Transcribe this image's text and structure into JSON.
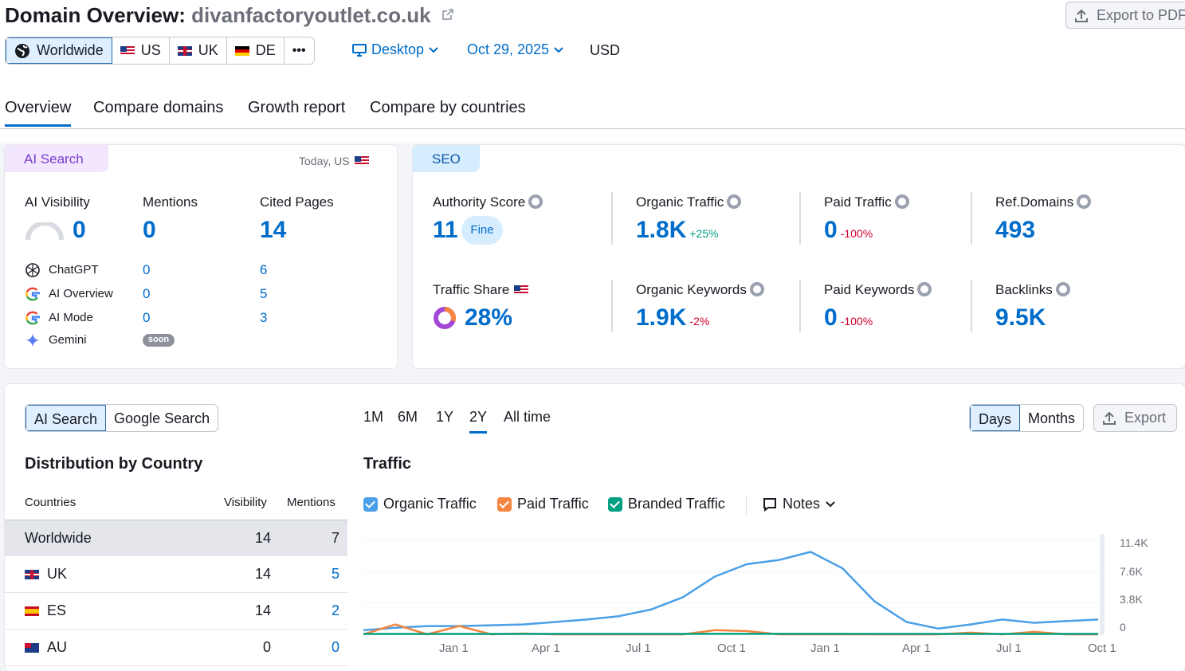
{
  "header": {
    "title_prefix": "Domain Overview: ",
    "domain": "divanfactoryoutlet.co.uk",
    "export_pdf": "Export to PDF",
    "regions": [
      {
        "label": "Worldwide",
        "icon": "globe-icon"
      },
      {
        "label": "US",
        "icon": "flag-us"
      },
      {
        "label": "UK",
        "icon": "flag-uk"
      },
      {
        "label": "DE",
        "icon": "flag-de"
      }
    ],
    "more": "•••",
    "device": "Desktop",
    "date": "Oct 29, 2025",
    "currency": "USD"
  },
  "tabs": [
    "Overview",
    "Compare domains",
    "Growth report",
    "Compare by countries"
  ],
  "ai_card": {
    "chip": "AI Search",
    "scope": "Today, US",
    "visibility_label": "AI Visibility",
    "visibility_value": "0",
    "mentions_label": "Mentions",
    "mentions_value": "0",
    "cited_label": "Cited Pages",
    "cited_value": "14",
    "sources": [
      {
        "name": "ChatGPT",
        "mentions": "0",
        "cited": "6"
      },
      {
        "name": "AI Overview",
        "mentions": "0",
        "cited": "5"
      },
      {
        "name": "AI Mode",
        "mentions": "0",
        "cited": "3"
      },
      {
        "name": "Gemini",
        "badge": "soon"
      }
    ]
  },
  "seo_card": {
    "chip": "SEO",
    "metrics": [
      {
        "label": "Authority Score",
        "value": "11",
        "badge": "Fine"
      },
      {
        "label": "Organic Traffic",
        "value": "1.8K",
        "delta": "+25%"
      },
      {
        "label": "Paid Traffic",
        "value": "0",
        "delta": "-100%"
      },
      {
        "label": "Ref.Domains",
        "value": "493"
      },
      {
        "label": "Traffic Share",
        "value": "28%"
      },
      {
        "label": "Organic Keywords",
        "value": "1.9K",
        "delta": "-2%"
      },
      {
        "label": "Paid Keywords",
        "value": "0",
        "delta": "-100%"
      },
      {
        "label": "Backlinks",
        "value": "9.5K"
      }
    ]
  },
  "bottom": {
    "search_toggle": [
      "AI Search",
      "Google Search"
    ],
    "periods": [
      "1M",
      "6M",
      "1Y",
      "2Y",
      "All time"
    ],
    "granularity": [
      "Days",
      "Months"
    ],
    "export": "Export",
    "distribution_title": "Distribution by Country",
    "columns": [
      "Countries",
      "Visibility",
      "Mentions"
    ],
    "rows": [
      {
        "country": "Worldwide",
        "visibility": "14",
        "mentions": "7"
      },
      {
        "country": "UK",
        "visibility": "14",
        "mentions": "5"
      },
      {
        "country": "ES",
        "visibility": "14",
        "mentions": "2"
      },
      {
        "country": "AU",
        "visibility": "0",
        "mentions": "0"
      }
    ],
    "traffic_title": "Traffic",
    "legend": [
      "Organic Traffic",
      "Paid Traffic",
      "Branded Traffic"
    ],
    "notes": "Notes"
  },
  "chart_data": {
    "type": "line",
    "title": "Traffic",
    "x_ticks": [
      "Jan 1",
      "Apr 1",
      "Jul 1",
      "Oct 1",
      "Jan 1",
      "Apr 1",
      "Jul 1",
      "Oct 1"
    ],
    "y_ticks": [
      "11.4K",
      "7.6K",
      "3.8K",
      "0"
    ],
    "ylim": [
      0,
      11400
    ],
    "x": [
      "2023-11",
      "2023-12",
      "2024-01",
      "2024-02",
      "2024-03",
      "2024-04",
      "2024-05",
      "2024-06",
      "2024-07",
      "2024-08",
      "2024-09",
      "2024-10",
      "2024-11",
      "2024-12",
      "2025-01",
      "2025-02",
      "2025-03",
      "2025-04",
      "2025-05",
      "2025-06",
      "2025-07",
      "2025-08",
      "2025-09",
      "2025-10"
    ],
    "series": [
      {
        "name": "Organic Traffic",
        "color": "#4a9fe8",
        "values": [
          500,
          800,
          1000,
          1000,
          1100,
          1200,
          1500,
          1800,
          2200,
          3000,
          4500,
          7000,
          8500,
          9000,
          10000,
          8000,
          4000,
          1500,
          700,
          1200,
          1800,
          1400,
          1600,
          1800
        ]
      },
      {
        "name": "Paid Traffic",
        "color": "#f5853f",
        "values": [
          0,
          1200,
          0,
          1000,
          0,
          100,
          0,
          0,
          0,
          0,
          0,
          500,
          400,
          0,
          0,
          0,
          0,
          0,
          0,
          200,
          0,
          300,
          0,
          0
        ]
      },
      {
        "name": "Branded Traffic",
        "color": "#009f81",
        "values": [
          50,
          50,
          50,
          50,
          50,
          50,
          50,
          50,
          50,
          50,
          50,
          60,
          60,
          60,
          60,
          60,
          50,
          50,
          50,
          50,
          50,
          50,
          50,
          50
        ]
      }
    ]
  }
}
